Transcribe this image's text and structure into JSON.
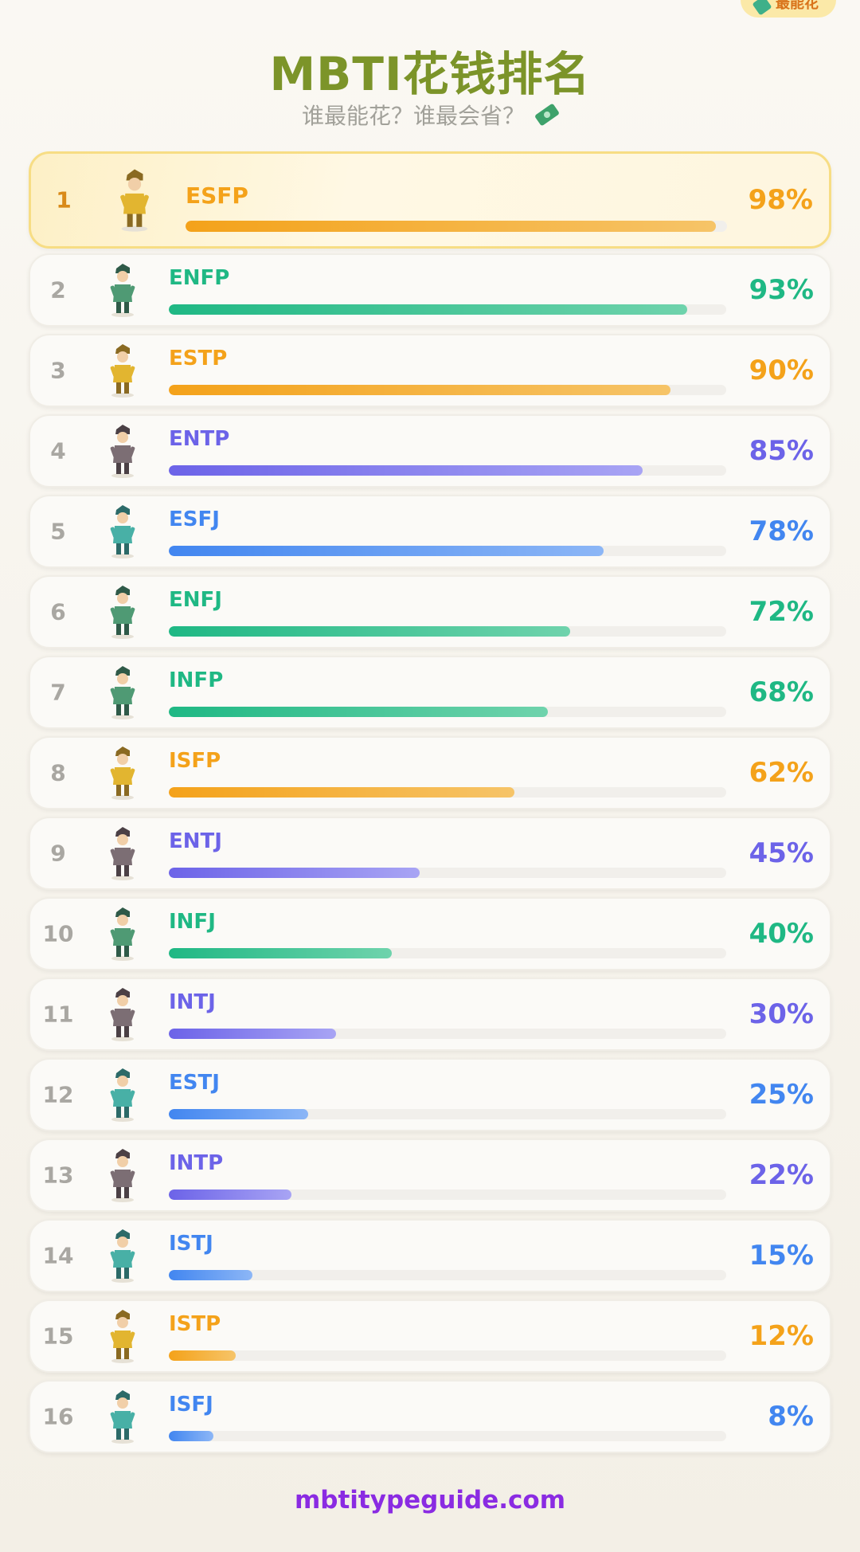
{
  "header": {
    "badge_label": "最能花",
    "title": "MBTI花钱排名",
    "subtitle": "谁最能花？谁最会省？"
  },
  "colors": {
    "title": "#7c9429",
    "footer": "#8a2be2",
    "orange": "#f4a21a",
    "green": "#1fb884",
    "purple": "#6c63e8",
    "blue": "#4286f0"
  },
  "ranking": [
    {
      "rank": "1",
      "type": "ESFP",
      "percent": "98%",
      "value": 98,
      "color": "orange"
    },
    {
      "rank": "2",
      "type": "ENFP",
      "percent": "93%",
      "value": 93,
      "color": "green"
    },
    {
      "rank": "3",
      "type": "ESTP",
      "percent": "90%",
      "value": 90,
      "color": "orange"
    },
    {
      "rank": "4",
      "type": "ENTP",
      "percent": "85%",
      "value": 85,
      "color": "purple"
    },
    {
      "rank": "5",
      "type": "ESFJ",
      "percent": "78%",
      "value": 78,
      "color": "blue"
    },
    {
      "rank": "6",
      "type": "ENFJ",
      "percent": "72%",
      "value": 72,
      "color": "green"
    },
    {
      "rank": "7",
      "type": "INFP",
      "percent": "68%",
      "value": 68,
      "color": "green"
    },
    {
      "rank": "8",
      "type": "ISFP",
      "percent": "62%",
      "value": 62,
      "color": "orange"
    },
    {
      "rank": "9",
      "type": "ENTJ",
      "percent": "45%",
      "value": 45,
      "color": "purple"
    },
    {
      "rank": "10",
      "type": "INFJ",
      "percent": "40%",
      "value": 40,
      "color": "green"
    },
    {
      "rank": "11",
      "type": "INTJ",
      "percent": "30%",
      "value": 30,
      "color": "purple"
    },
    {
      "rank": "12",
      "type": "ESTJ",
      "percent": "25%",
      "value": 25,
      "color": "blue"
    },
    {
      "rank": "13",
      "type": "INTP",
      "percent": "22%",
      "value": 22,
      "color": "purple"
    },
    {
      "rank": "14",
      "type": "ISTJ",
      "percent": "15%",
      "value": 15,
      "color": "blue"
    },
    {
      "rank": "15",
      "type": "ISTP",
      "percent": "12%",
      "value": 12,
      "color": "orange"
    },
    {
      "rank": "16",
      "type": "ISFJ",
      "percent": "8%",
      "value": 8,
      "color": "blue"
    }
  ],
  "footer": {
    "site": "mbtitypeguide.com"
  }
}
